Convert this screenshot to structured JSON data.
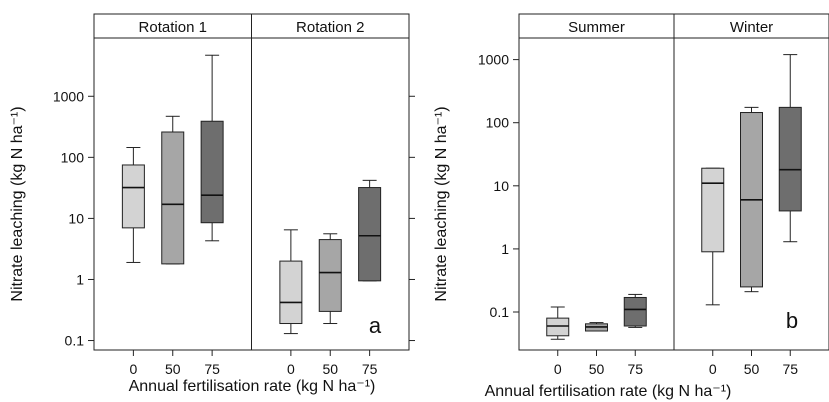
{
  "chart_data": [
    {
      "type": "boxplot",
      "panel_label": "a",
      "ylabel": "Nitrate leaching (kg N ha⁻¹)",
      "xlabel": "Annual fertilisation rate (kg N ha⁻¹)",
      "y_scale": "log",
      "ylim": [
        0.07,
        9000
      ],
      "yticks": [
        0.1,
        1,
        10,
        100,
        1000
      ],
      "yticklabels": [
        "0.1",
        "1",
        "10",
        "100",
        "1000"
      ],
      "categories": [
        "0",
        "50",
        "75"
      ],
      "fill_colors": [
        "#d3d3d3",
        "#a6a6a6",
        "#6e6e6e"
      ],
      "facets": [
        {
          "title": "Rotation 1",
          "boxes": [
            {
              "category": "0",
              "whisker_low": 1.9,
              "q1": 7,
              "median": 32,
              "q3": 75,
              "whisker_high": 145
            },
            {
              "category": "50",
              "whisker_low": 1.8,
              "q1": 1.8,
              "median": 17,
              "q3": 260,
              "whisker_high": 470
            },
            {
              "category": "75",
              "whisker_low": 4.3,
              "q1": 8.5,
              "median": 24,
              "q3": 390,
              "whisker_high": 4700
            }
          ]
        },
        {
          "title": "Rotation 2",
          "boxes": [
            {
              "category": "0",
              "whisker_low": 0.13,
              "q1": 0.19,
              "median": 0.42,
              "q3": 2.0,
              "whisker_high": 6.5
            },
            {
              "category": "50",
              "whisker_low": 0.19,
              "q1": 0.3,
              "median": 1.3,
              "q3": 4.5,
              "whisker_high": 5.6
            },
            {
              "category": "75",
              "whisker_low": 0.95,
              "q1": 0.95,
              "median": 5.2,
              "q3": 32,
              "whisker_high": 42
            }
          ]
        }
      ]
    },
    {
      "type": "boxplot",
      "panel_label": "b",
      "ylabel": "Nitrate leaching (kg N ha⁻¹)",
      "xlabel": "Annual fertilisation rate (kg N ha⁻¹)",
      "y_scale": "log",
      "ylim": [
        0.025,
        2200
      ],
      "yticks": [
        0.1,
        1,
        10,
        100,
        1000
      ],
      "yticklabels": [
        "0.1",
        "1",
        "10",
        "100",
        "1000"
      ],
      "categories": [
        "0",
        "50",
        "75"
      ],
      "fill_colors": [
        "#d3d3d3",
        "#a6a6a6",
        "#6e6e6e"
      ],
      "facets": [
        {
          "title": "Summer",
          "boxes": [
            {
              "category": "0",
              "whisker_low": 0.037,
              "q1": 0.042,
              "median": 0.06,
              "q3": 0.08,
              "whisker_high": 0.12
            },
            {
              "category": "50",
              "whisker_low": 0.05,
              "q1": 0.05,
              "median": 0.058,
              "q3": 0.065,
              "whisker_high": 0.068
            },
            {
              "category": "75",
              "whisker_low": 0.057,
              "q1": 0.06,
              "median": 0.11,
              "q3": 0.17,
              "whisker_high": 0.19
            }
          ]
        },
        {
          "title": "Winter",
          "boxes": [
            {
              "category": "0",
              "whisker_low": 0.13,
              "q1": 0.9,
              "median": 11,
              "q3": 19,
              "whisker_high": 19
            },
            {
              "category": "50",
              "whisker_low": 0.21,
              "q1": 0.25,
              "median": 6,
              "q3": 145,
              "whisker_high": 175
            },
            {
              "category": "75",
              "whisker_low": 1.3,
              "q1": 4,
              "median": 18,
              "q3": 175,
              "whisker_high": 1200
            }
          ]
        }
      ]
    }
  ]
}
